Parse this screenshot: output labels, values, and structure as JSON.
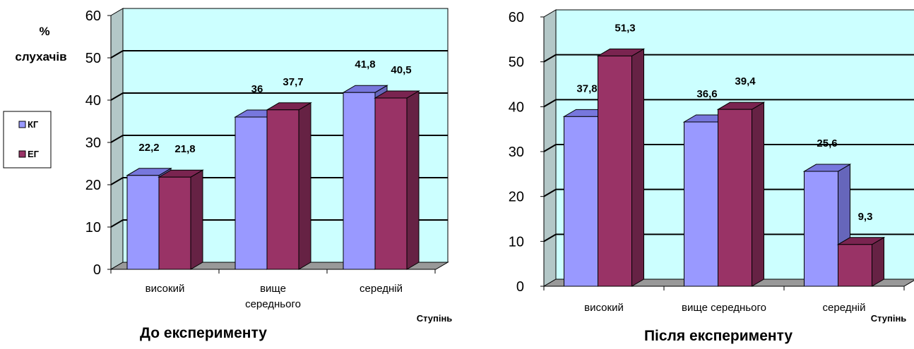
{
  "colors": {
    "kg_front": "#9999FF",
    "kg_top": "#7777DD",
    "kg_side": "#6666BB",
    "eg_front": "#993366",
    "eg_top": "#7A2450",
    "eg_side": "#662244",
    "wall": "#CCFFFF",
    "side_wall": "#B3C7C7",
    "floor": "#999999"
  },
  "legend": {
    "items": [
      "КГ",
      "ЕГ"
    ]
  },
  "chart_data": [
    {
      "type": "bar",
      "title": "До експерименту",
      "ylabel_line1": "%",
      "ylabel_line2": "слухачів",
      "xlabel": "Ступінь",
      "categories": [
        [
          "високий"
        ],
        [
          "вище",
          "середнього"
        ],
        [
          "середній"
        ]
      ],
      "series": [
        {
          "name": "КГ",
          "values": [
            22.2,
            36,
            41.8
          ],
          "labels": [
            "22,2",
            "36",
            "41,8"
          ]
        },
        {
          "name": "ЕГ",
          "values": [
            21.8,
            37.7,
            40.5
          ],
          "labels": [
            "21,8",
            "37,7",
            "40,5"
          ]
        }
      ],
      "ylim": [
        0,
        60
      ],
      "yticks": [
        "0",
        "10",
        "20",
        "30",
        "40",
        "50",
        "60"
      ],
      "grid": true,
      "legend_position": "left"
    },
    {
      "type": "bar",
      "title": "Після експерименту",
      "xlabel": "Ступінь",
      "categories": [
        [
          "високий"
        ],
        [
          "вище середнього"
        ],
        [
          "середній"
        ]
      ],
      "series": [
        {
          "name": "КГ",
          "values": [
            37.8,
            36.6,
            25.6
          ],
          "labels": [
            "37,8",
            "36,6",
            "25,6"
          ]
        },
        {
          "name": "ЕГ",
          "values": [
            51.3,
            39.4,
            9.3
          ],
          "labels": [
            "51,3",
            "39,4",
            "9,3"
          ]
        }
      ],
      "ylim": [
        0,
        60
      ],
      "yticks": [
        "0",
        "10",
        "20",
        "30",
        "40",
        "50",
        "60"
      ],
      "grid": true
    }
  ]
}
